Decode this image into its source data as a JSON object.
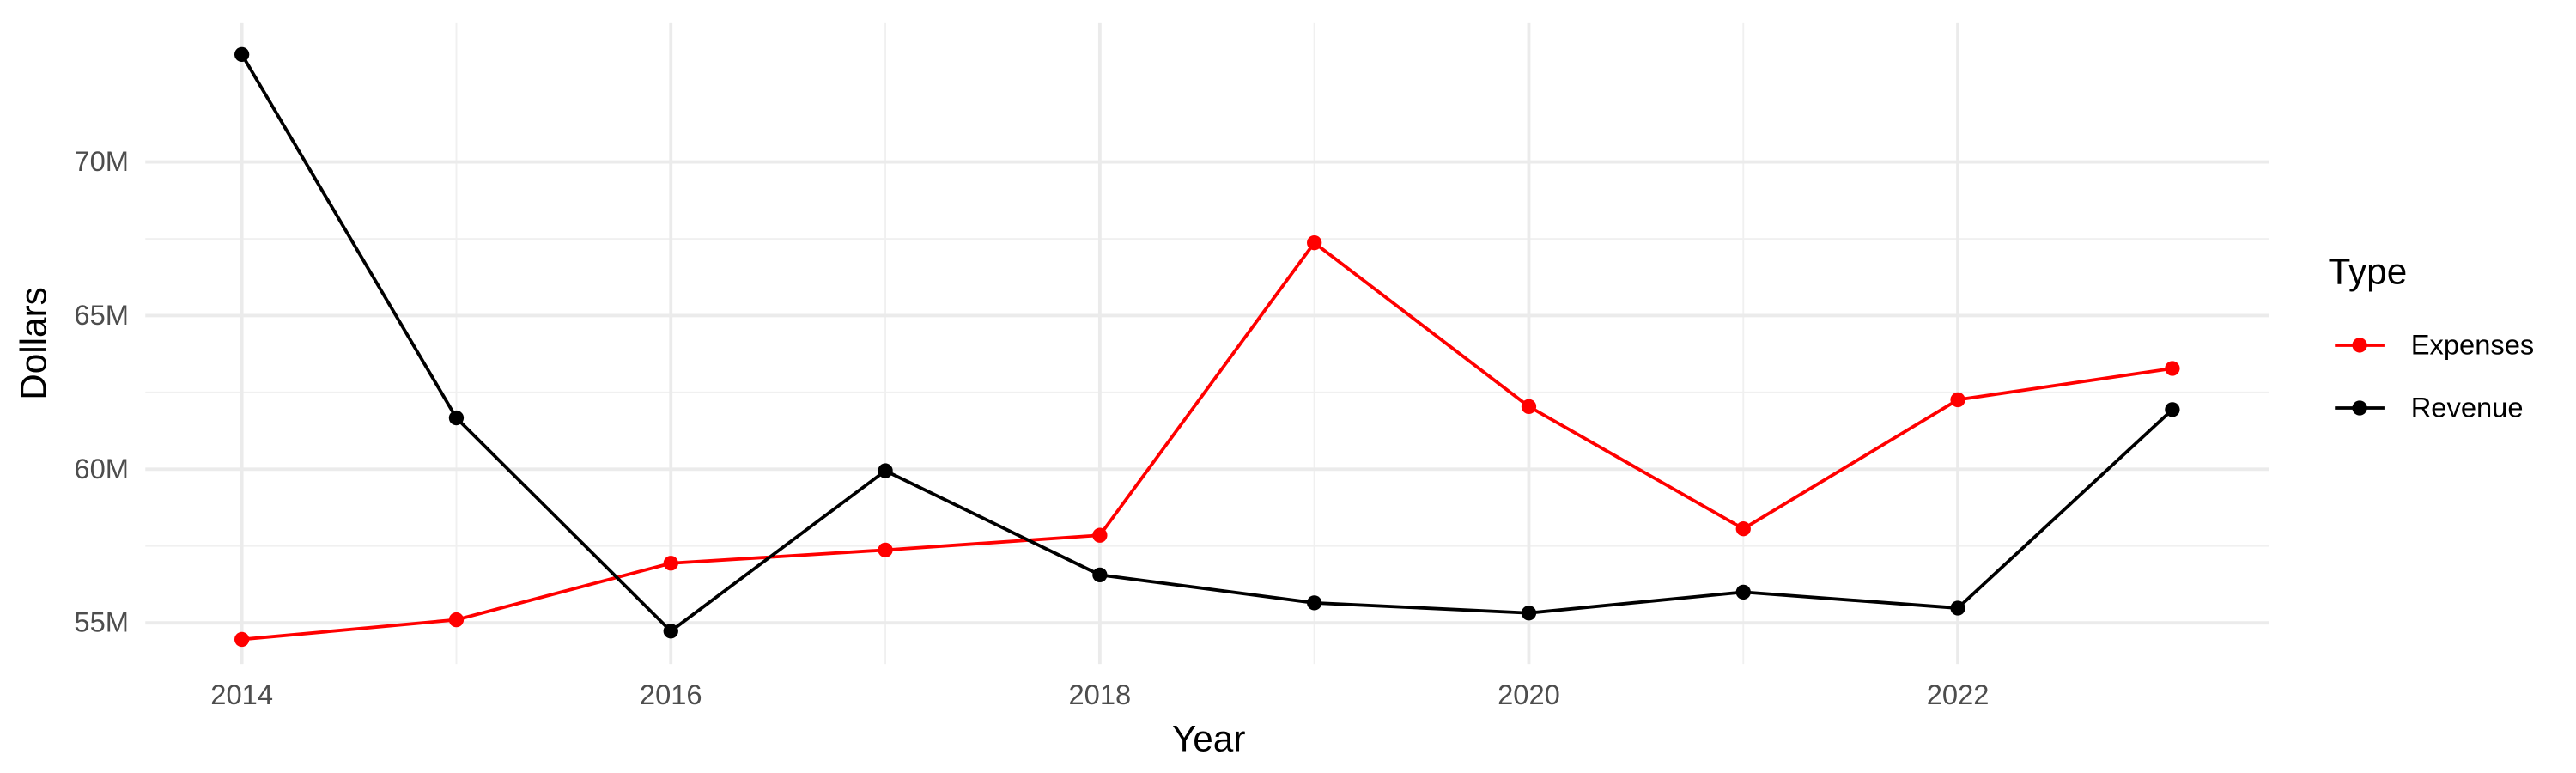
{
  "chart_data": {
    "type": "line",
    "x_label": "Year",
    "y_label": "Dollars",
    "x": [
      2014,
      2015,
      2016,
      2017,
      2018,
      2019,
      2020,
      2021,
      2022,
      2023
    ],
    "series": [
      {
        "name": "Expenses",
        "color": "#ff0000",
        "values": [
          54460000,
          55100000,
          56940000,
          57370000,
          57850000,
          67370000,
          62040000,
          58060000,
          62260000,
          63280000
        ]
      },
      {
        "name": "Revenue",
        "color": "#000000",
        "values": [
          73500000,
          61670000,
          54730000,
          59950000,
          56560000,
          55650000,
          55320000,
          56000000,
          55480000,
          61940000
        ]
      }
    ],
    "legend_title": "Type",
    "legend": "right",
    "xlim": [
      2013.55,
      2023.45
    ],
    "xticks": [
      2014,
      2016,
      2018,
      2020,
      2022
    ],
    "ylim": [
      53660000,
      74520000
    ],
    "yticks": [
      {
        "value": 55000000,
        "label": "55M"
      },
      {
        "value": 60000000,
        "label": "60M"
      },
      {
        "value": 65000000,
        "label": "65M"
      },
      {
        "value": 70000000,
        "label": "70M"
      }
    ],
    "grid": true
  }
}
